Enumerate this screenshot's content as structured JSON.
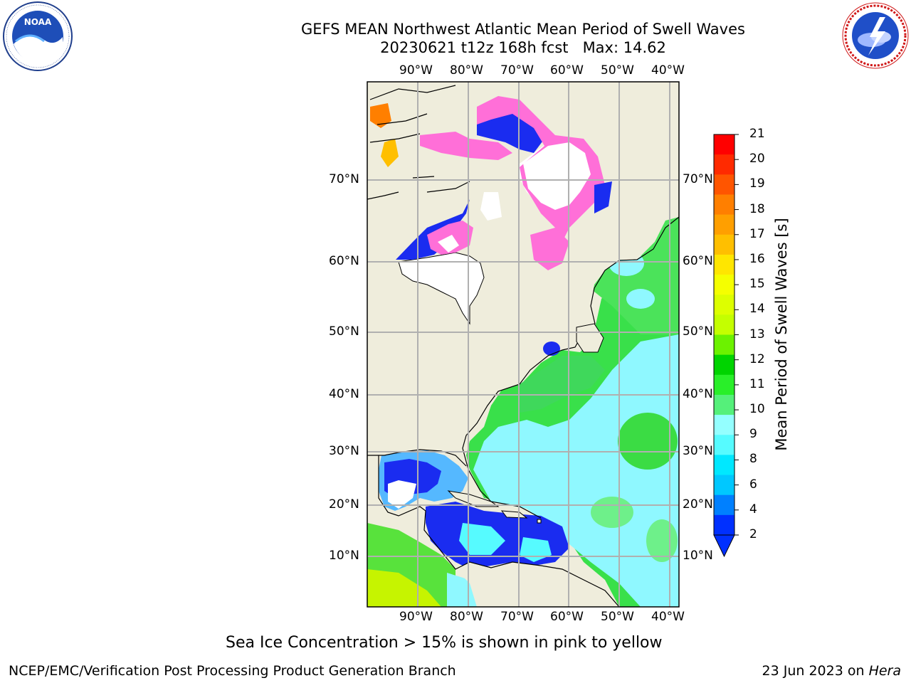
{
  "title": {
    "line1": "GEFS MEAN Northwest Atlantic Mean Period of Swell Waves",
    "line2": "20230621 t12z 168h fcst   Max: 14.62"
  },
  "logos": {
    "left": "NOAA",
    "left_ring_text": "NATIONAL OCEANIC AND ATMOSPHERIC ADMINISTRATION · U.S. DEPARTMENT OF COMMERCE",
    "right_ring_text": "NATIONAL WEATHER SERVICE"
  },
  "map": {
    "lon_labels": [
      "90°W",
      "80°W",
      "70°W",
      "60°W",
      "50°W",
      "40°W"
    ],
    "lat_labels": [
      "70°N",
      "60°N",
      "50°N",
      "40°N",
      "30°N",
      "20°N",
      "10°N"
    ],
    "colors": {
      "land": "#efeddc",
      "ice_white": "#ffffff",
      "grid": "#b0b0b0"
    }
  },
  "colorbar": {
    "label": "Mean Period of Swell Waves [s]",
    "ticks": [
      "21",
      "20",
      "19",
      "18",
      "17",
      "16",
      "15",
      "14",
      "13",
      "12",
      "11",
      "10",
      "9",
      "8",
      "6",
      "4",
      "2"
    ],
    "colors_top_to_bottom": [
      "#ff0000",
      "#ff2a00",
      "#ff5500",
      "#ff7f00",
      "#ff9f00",
      "#ffbf00",
      "#ffe600",
      "#f5ff00",
      "#ddff00",
      "#c4ff00",
      "#6cf200",
      "#00d400",
      "#29ef29",
      "#55f07a",
      "#94ffff",
      "#56fbff",
      "#00e8ff",
      "#00c8ff",
      "#0080ff",
      "#0030ff"
    ]
  },
  "caption": "Sea Ice Concentration > 15% is shown in pink to yellow",
  "footer": {
    "left": "NCEP/EMC/Verification Post Processing Product Generation Branch",
    "right_date": "23 Jun 2023 on ",
    "right_host": "Hera"
  }
}
